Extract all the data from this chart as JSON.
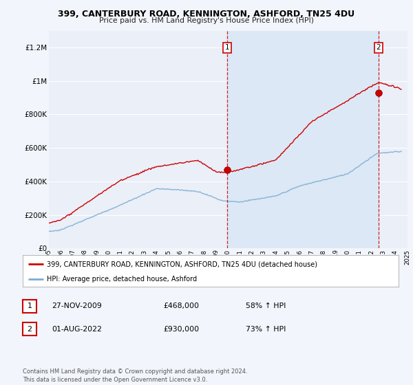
{
  "title": "399, CANTERBURY ROAD, KENNINGTON, ASHFORD, TN25 4DU",
  "subtitle": "Price paid vs. HM Land Registry's House Price Index (HPI)",
  "ylim": [
    0,
    1300000
  ],
  "yticks": [
    0,
    200000,
    400000,
    600000,
    800000,
    1000000,
    1200000
  ],
  "ytick_labels": [
    "£0",
    "£200K",
    "£400K",
    "£600K",
    "£800K",
    "£1M",
    "£1.2M"
  ],
  "bg_color": "#f2f5fb",
  "plot_bg_color": "#eaeff8",
  "highlight_color": "#dce8f5",
  "grid_color": "#ffffff",
  "red_color": "#cc0000",
  "blue_color": "#7aadd4",
  "sale1_x": 2009.92,
  "sale1_y": 468000,
  "sale2_x": 2022.58,
  "sale2_y": 930000,
  "legend_red_label": "399, CANTERBURY ROAD, KENNINGTON, ASHFORD, TN25 4DU (detached house)",
  "legend_blue_label": "HPI: Average price, detached house, Ashford",
  "table_row1": [
    "1",
    "27-NOV-2009",
    "£468,000",
    "58% ↑ HPI"
  ],
  "table_row2": [
    "2",
    "01-AUG-2022",
    "£930,000",
    "73% ↑ HPI"
  ],
  "footer": "Contains HM Land Registry data © Crown copyright and database right 2024.\nThis data is licensed under the Open Government Licence v3.0.",
  "xmin": 1995,
  "xmax": 2025,
  "xticks": [
    1995,
    1996,
    1997,
    1998,
    1999,
    2000,
    2001,
    2002,
    2003,
    2004,
    2005,
    2006,
    2007,
    2008,
    2009,
    2010,
    2011,
    2012,
    2013,
    2014,
    2015,
    2016,
    2017,
    2018,
    2019,
    2020,
    2021,
    2022,
    2023,
    2024,
    2025
  ]
}
